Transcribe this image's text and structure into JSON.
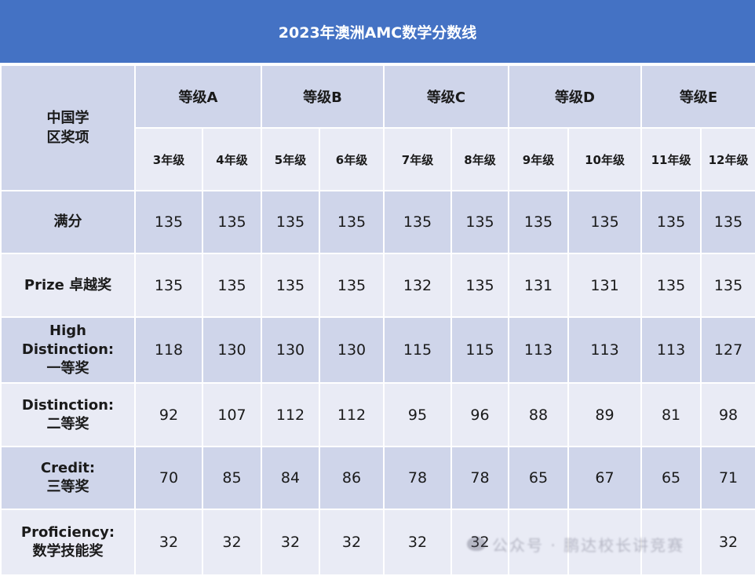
{
  "title": "2023年澳洲AMC数学分数线",
  "table": {
    "corner_label_line1": "中国学",
    "corner_label_line2": "区奖项",
    "levels": [
      "等级A",
      "等级B",
      "等级C",
      "等级D",
      "等级E"
    ],
    "grades": [
      "3年级",
      "4年级",
      "5年级",
      "6年级",
      "7年级",
      "8年级",
      "9年级",
      "10年级",
      "11年级",
      "12年级"
    ],
    "rows": [
      {
        "label_lines": [
          "满分"
        ],
        "values": [
          "135",
          "135",
          "135",
          "135",
          "135",
          "135",
          "135",
          "135",
          "135",
          "135"
        ]
      },
      {
        "label_lines": [
          "Prize 卓越奖"
        ],
        "values": [
          "135",
          "135",
          "135",
          "135",
          "132",
          "135",
          "131",
          "131",
          "135",
          "135"
        ]
      },
      {
        "label_lines": [
          "High",
          "Distinction:",
          "一等奖"
        ],
        "values": [
          "118",
          "130",
          "130",
          "130",
          "115",
          "115",
          "113",
          "113",
          "113",
          "127"
        ]
      },
      {
        "label_lines": [
          "Distinction:",
          "二等奖"
        ],
        "values": [
          "92",
          "107",
          "112",
          "112",
          "95",
          "96",
          "88",
          "89",
          "81",
          "98"
        ]
      },
      {
        "label_lines": [
          "Credit:",
          "三等奖"
        ],
        "values": [
          "70",
          "85",
          "84",
          "86",
          "78",
          "78",
          "65",
          "67",
          "65",
          "71"
        ]
      },
      {
        "label_lines": [
          "Proficiency:",
          "数学技能奖"
        ],
        "values": [
          "32",
          "32",
          "32",
          "32",
          "32",
          "32",
          "",
          "",
          "",
          "32"
        ]
      }
    ]
  },
  "watermark": "公众号 · 鹏达校长讲竞赛",
  "colors": {
    "title_bg": "#4472c4",
    "dark_row": "#cfd5ea",
    "light_row": "#e9ebf5"
  }
}
